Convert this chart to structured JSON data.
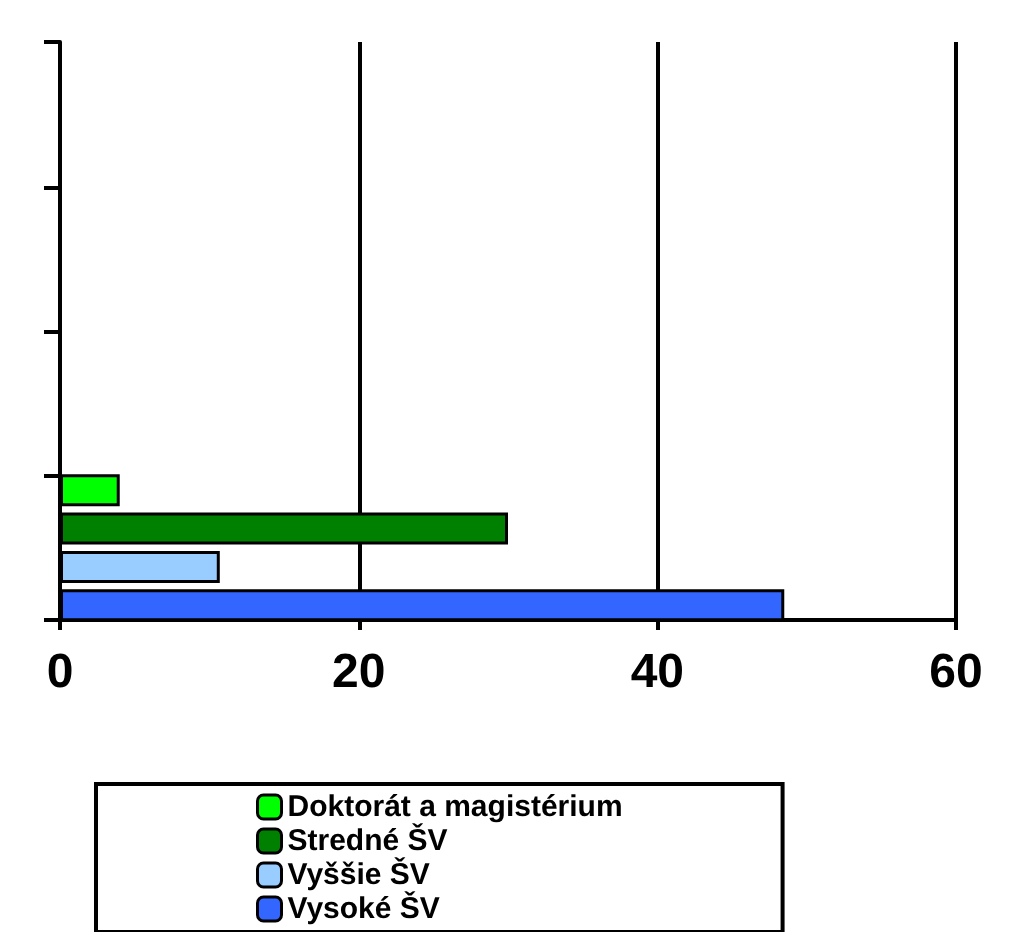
{
  "chart_data": {
    "type": "bar",
    "orientation": "horizontal",
    "categories": [
      null,
      null,
      null,
      null
    ],
    "series": [
      {
        "name": "Doktorát a magistérium",
        "color": "#00ff00",
        "values": [
          null,
          null,
          null,
          4.0
        ]
      },
      {
        "name": "Stredné ŠV",
        "color": "#008000",
        "values": [
          null,
          null,
          null,
          30
        ]
      },
      {
        "name": "Vyššie ŠV",
        "color": "#99ccff",
        "values": [
          null,
          null,
          null,
          10.7
        ]
      },
      {
        "name": "Vysoké ŠV",
        "color": "#3366ff",
        "values": [
          null,
          null,
          null,
          48.5
        ]
      }
    ],
    "xlim": [
      0,
      60
    ],
    "xticks": [
      0,
      20,
      40,
      60
    ],
    "grid": "x",
    "legend": "bottom"
  }
}
